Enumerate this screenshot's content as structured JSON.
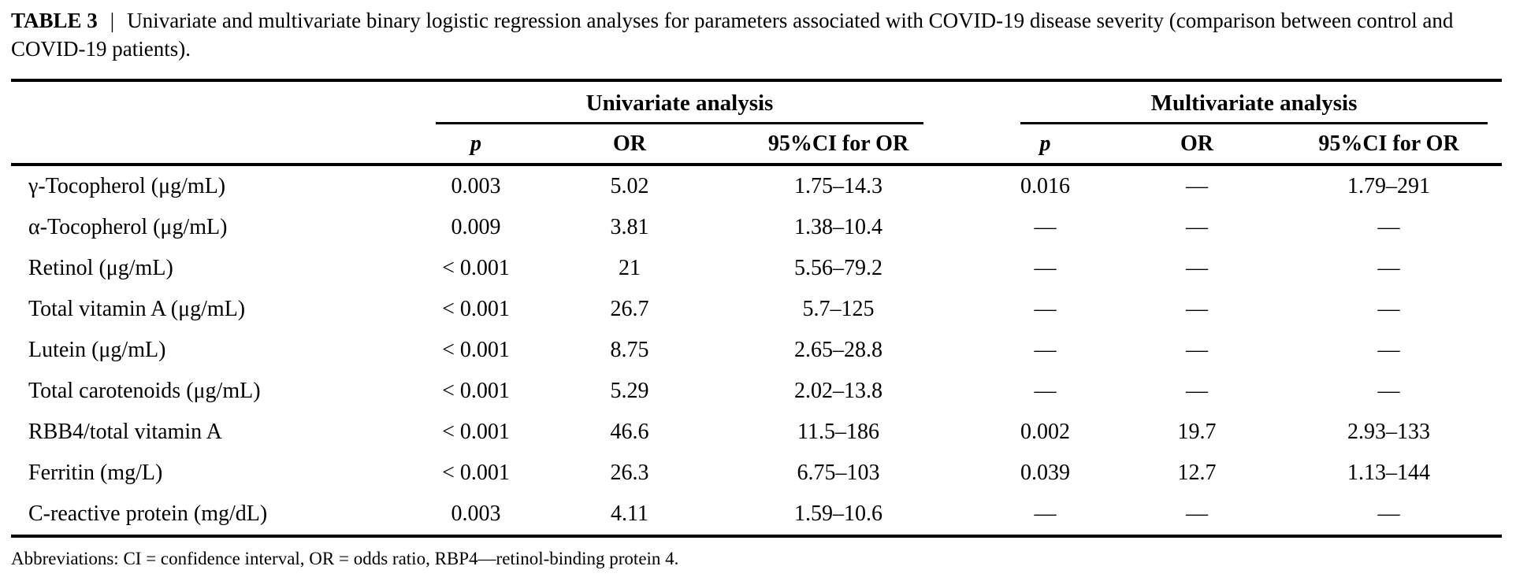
{
  "caption": {
    "label": "TABLE 3",
    "separator": "|",
    "text": "Univariate and multivariate binary logistic regression analyses for parameters associated with COVID-19 disease severity (comparison between control and COVID-19 patients)."
  },
  "table": {
    "group_headers": [
      {
        "label": "Univariate analysis"
      },
      {
        "label": "Multivariate analysis"
      }
    ],
    "column_headers": {
      "uni_p": "p",
      "uni_or": "OR",
      "uni_ci": "95%CI for OR",
      "multi_p": "p",
      "multi_or": "OR",
      "multi_ci": "95%CI for OR"
    },
    "rows": [
      {
        "parameter": "γ-Tocopherol (μg/mL)",
        "uni_p": "0.003",
        "uni_or": "5.02",
        "uni_ci": "1.75–14.3",
        "multi_p": "0.016",
        "multi_or": "—",
        "multi_ci": "1.79–291"
      },
      {
        "parameter": "α-Tocopherol (μg/mL)",
        "uni_p": "0.009",
        "uni_or": "3.81",
        "uni_ci": "1.38–10.4",
        "multi_p": "—",
        "multi_or": "—",
        "multi_ci": "—"
      },
      {
        "parameter": "Retinol (μg/mL)",
        "uni_p": "< 0.001",
        "uni_or": "21",
        "uni_ci": "5.56–79.2",
        "multi_p": "—",
        "multi_or": "—",
        "multi_ci": "—"
      },
      {
        "parameter": "Total vitamin A (μg/mL)",
        "uni_p": "< 0.001",
        "uni_or": "26.7",
        "uni_ci": "5.7–125",
        "multi_p": "—",
        "multi_or": "—",
        "multi_ci": "—"
      },
      {
        "parameter": "Lutein (μg/mL)",
        "uni_p": "< 0.001",
        "uni_or": "8.75",
        "uni_ci": "2.65–28.8",
        "multi_p": "—",
        "multi_or": "—",
        "multi_ci": "—"
      },
      {
        "parameter": "Total carotenoids (μg/mL)",
        "uni_p": "< 0.001",
        "uni_or": "5.29",
        "uni_ci": "2.02–13.8",
        "multi_p": "—",
        "multi_or": "—",
        "multi_ci": "—"
      },
      {
        "parameter": "RBB4/total vitamin A",
        "uni_p": "< 0.001",
        "uni_or": "46.6",
        "uni_ci": "11.5–186",
        "multi_p": "0.002",
        "multi_or": "19.7",
        "multi_ci": "2.93–133"
      },
      {
        "parameter": "Ferritin (mg/L)",
        "uni_p": "< 0.001",
        "uni_or": "26.3",
        "uni_ci": "6.75–103",
        "multi_p": "0.039",
        "multi_or": "12.7",
        "multi_ci": "1.13–144"
      },
      {
        "parameter": "C-reactive protein (mg/dL)",
        "uni_p": "0.003",
        "uni_or": "4.11",
        "uni_ci": "1.59–10.6",
        "multi_p": "—",
        "multi_or": "—",
        "multi_ci": "—"
      }
    ]
  },
  "footnote": "Abbreviations: CI = confidence interval, OR = odds ratio, RBP4—retinol-binding protein 4."
}
